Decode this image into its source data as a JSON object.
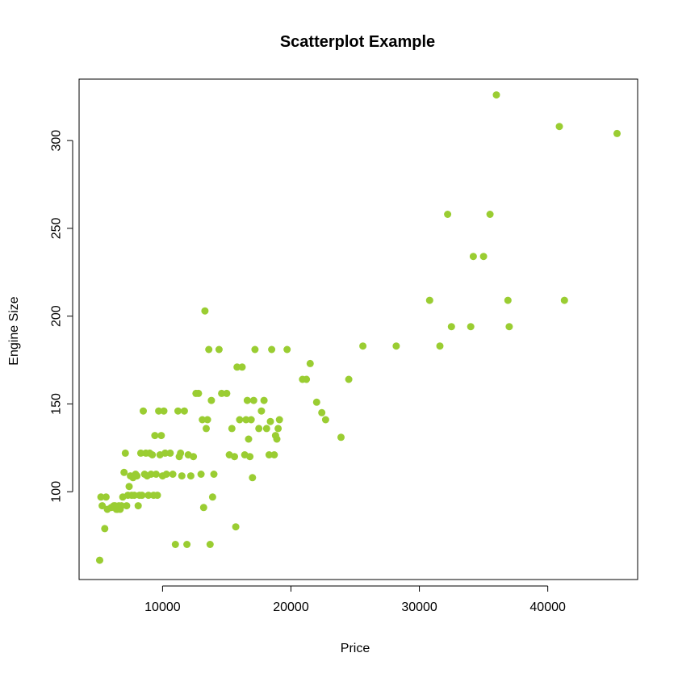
{
  "chart_data": {
    "type": "scatter",
    "title": "Scatterplot Example",
    "xlabel": "Price",
    "ylabel": "Engine Size",
    "xlim": [
      3500,
      47000
    ],
    "ylim": [
      50,
      335
    ],
    "xticks": [
      10000,
      20000,
      30000,
      40000
    ],
    "xtick_labels": [
      "10000",
      "20000",
      "30000",
      "40000"
    ],
    "yticks": [
      100,
      150,
      200,
      250,
      300
    ],
    "ytick_labels": [
      "100",
      "150",
      "200",
      "250",
      "300"
    ],
    "grid": false,
    "legend": "none",
    "point_color": "#9ACD32",
    "points": [
      [
        5100,
        61
      ],
      [
        5200,
        97
      ],
      [
        5300,
        92
      ],
      [
        5500,
        79
      ],
      [
        5600,
        97
      ],
      [
        5700,
        90
      ],
      [
        6000,
        91
      ],
      [
        6200,
        92
      ],
      [
        6300,
        92
      ],
      [
        6400,
        90
      ],
      [
        6500,
        90
      ],
      [
        6600,
        92
      ],
      [
        6700,
        90
      ],
      [
        6800,
        92
      ],
      [
        6900,
        97
      ],
      [
        7000,
        111
      ],
      [
        7100,
        122
      ],
      [
        7200,
        92
      ],
      [
        7300,
        98
      ],
      [
        7400,
        103
      ],
      [
        7500,
        109
      ],
      [
        7600,
        98
      ],
      [
        7700,
        108
      ],
      [
        7800,
        98
      ],
      [
        7900,
        110
      ],
      [
        8000,
        109
      ],
      [
        8100,
        92
      ],
      [
        8200,
        98
      ],
      [
        8300,
        122
      ],
      [
        8400,
        98
      ],
      [
        8500,
        146
      ],
      [
        8600,
        110
      ],
      [
        8700,
        122
      ],
      [
        8800,
        109
      ],
      [
        8900,
        98
      ],
      [
        9000,
        122
      ],
      [
        9100,
        110
      ],
      [
        9200,
        121
      ],
      [
        9300,
        98
      ],
      [
        9400,
        132
      ],
      [
        9500,
        110
      ],
      [
        9600,
        98
      ],
      [
        9700,
        146
      ],
      [
        9800,
        121
      ],
      [
        9900,
        132
      ],
      [
        10000,
        109
      ],
      [
        10100,
        146
      ],
      [
        10200,
        122
      ],
      [
        10300,
        110
      ],
      [
        10600,
        122
      ],
      [
        10800,
        110
      ],
      [
        11000,
        70
      ],
      [
        11200,
        146
      ],
      [
        11300,
        120
      ],
      [
        11400,
        122
      ],
      [
        11500,
        109
      ],
      [
        11700,
        146
      ],
      [
        11900,
        70
      ],
      [
        12000,
        121
      ],
      [
        12200,
        109
      ],
      [
        12400,
        120
      ],
      [
        12600,
        156
      ],
      [
        12800,
        156
      ],
      [
        13000,
        110
      ],
      [
        13100,
        141
      ],
      [
        13200,
        91
      ],
      [
        13300,
        203
      ],
      [
        13400,
        136
      ],
      [
        13500,
        141
      ],
      [
        13600,
        181
      ],
      [
        13700,
        70
      ],
      [
        13800,
        152
      ],
      [
        13900,
        97
      ],
      [
        14000,
        110
      ],
      [
        14400,
        181
      ],
      [
        14600,
        156
      ],
      [
        15000,
        156
      ],
      [
        15200,
        121
      ],
      [
        15400,
        136
      ],
      [
        15600,
        120
      ],
      [
        15700,
        80
      ],
      [
        15800,
        171
      ],
      [
        16000,
        141
      ],
      [
        16200,
        171
      ],
      [
        16400,
        121
      ],
      [
        16500,
        141
      ],
      [
        16600,
        152
      ],
      [
        16700,
        130
      ],
      [
        16800,
        120
      ],
      [
        16900,
        141
      ],
      [
        17000,
        108
      ],
      [
        17100,
        152
      ],
      [
        17200,
        181
      ],
      [
        17500,
        136
      ],
      [
        17700,
        146
      ],
      [
        17900,
        152
      ],
      [
        18100,
        136
      ],
      [
        18300,
        121
      ],
      [
        18400,
        140
      ],
      [
        18500,
        181
      ],
      [
        18700,
        121
      ],
      [
        18800,
        132
      ],
      [
        18900,
        130
      ],
      [
        19000,
        136
      ],
      [
        19100,
        141
      ],
      [
        19700,
        181
      ],
      [
        20900,
        164
      ],
      [
        21200,
        164
      ],
      [
        21500,
        173
      ],
      [
        22000,
        151
      ],
      [
        22400,
        145
      ],
      [
        22700,
        141
      ],
      [
        23900,
        131
      ],
      [
        24500,
        164
      ],
      [
        25600,
        183
      ],
      [
        28200,
        183
      ],
      [
        30800,
        209
      ],
      [
        31600,
        183
      ],
      [
        32200,
        258
      ],
      [
        32500,
        194
      ],
      [
        34000,
        194
      ],
      [
        34200,
        234
      ],
      [
        35000,
        234
      ],
      [
        35500,
        258
      ],
      [
        36000,
        326
      ],
      [
        36900,
        209
      ],
      [
        37000,
        194
      ],
      [
        40900,
        308
      ],
      [
        41300,
        209
      ],
      [
        45400,
        304
      ]
    ]
  }
}
